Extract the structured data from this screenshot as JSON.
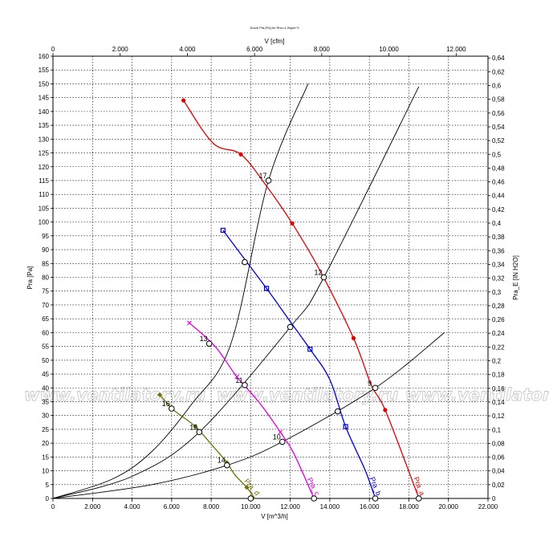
{
  "chart_data": {
    "type": "line",
    "title": "Druck Pra [Pa] for Rho=1.2kg/m^3",
    "xlabel": "V [m^3/h]",
    "x2label": "V [cfm]",
    "ylabel": "Pra [Pa]",
    "y2label": "Pra_E [IN H2O]",
    "xlim": [
      0,
      22000
    ],
    "ylim": [
      0,
      160
    ],
    "x2lim": [
      0,
      12948
    ],
    "y2lim": [
      0,
      0.6426
    ],
    "x_ticks": [
      "0",
      "2.000",
      "4.000",
      "6.000",
      "8.000",
      "10.000",
      "12.000",
      "14.000",
      "16.000",
      "18.000",
      "20.000",
      "22.000"
    ],
    "x2_ticks": [
      "0",
      "2.000",
      "4.000",
      "6.000",
      "8.000",
      "10.000",
      "12.000"
    ],
    "y_ticks": [
      "0",
      "5",
      "10",
      "15",
      "20",
      "25",
      "30",
      "35",
      "40",
      "45",
      "50",
      "55",
      "60",
      "65",
      "70",
      "75",
      "80",
      "85",
      "90",
      "95",
      "100",
      "105",
      "110",
      "115",
      "120",
      "125",
      "130",
      "135",
      "140",
      "145",
      "150",
      "155",
      "160"
    ],
    "y2_ticks": [
      "0",
      "0,02",
      "0,04",
      "0,06",
      "0,08",
      "0,1",
      "0,12",
      "0,14",
      "0,16",
      "0,18",
      "0,2",
      "0,22",
      "0,24",
      "0,26",
      "0,28",
      "0,3",
      "0,32",
      "0,34",
      "0,36",
      "0,38",
      "0,4",
      "0,42",
      "0,44",
      "0,46",
      "0,48",
      "0,5",
      "0,52",
      "0,54",
      "0,56",
      "0,58",
      "0,6",
      "0,62",
      "0,64"
    ],
    "grid": true,
    "watermark": "www.ventilatory.ru",
    "series": [
      {
        "name": "Pra_a",
        "color": "#e00000",
        "marker": "circle",
        "points": [
          [
            6600,
            144
          ],
          [
            8100,
            128.5
          ],
          [
            9500,
            124.5
          ],
          [
            10800,
            113
          ],
          [
            12100,
            99.5
          ],
          [
            13500,
            82.5
          ],
          [
            15200,
            58
          ],
          [
            16100,
            41
          ],
          [
            16800,
            32
          ],
          [
            18300,
            4
          ],
          [
            18500,
            0
          ]
        ]
      },
      {
        "name": "Pra_b",
        "color": "#0000dd",
        "marker": "square",
        "points": [
          [
            8600,
            97
          ],
          [
            9700,
            86.5
          ],
          [
            10800,
            76
          ],
          [
            11900,
            65
          ],
          [
            13000,
            54
          ],
          [
            14000,
            43
          ],
          [
            14800,
            26
          ],
          [
            15800,
            10
          ],
          [
            16300,
            0
          ]
        ]
      },
      {
        "name": "Pra_c",
        "color": "#e000e0",
        "marker": "cross",
        "points": [
          [
            6900,
            63.5
          ],
          [
            8200,
            55
          ],
          [
            9300,
            44
          ],
          [
            10400,
            35
          ],
          [
            11500,
            24
          ],
          [
            12200,
            16
          ],
          [
            13200,
            0
          ]
        ]
      },
      {
        "name": "Pra_d",
        "color": "#707000",
        "marker": "diamond",
        "points": [
          [
            5400,
            37.5
          ],
          [
            6100,
            32
          ],
          [
            7200,
            26
          ],
          [
            8200,
            18
          ],
          [
            8800,
            13
          ],
          [
            9200,
            8.5
          ],
          [
            9800,
            4
          ],
          [
            10200,
            0
          ]
        ]
      }
    ],
    "system_curves": [
      {
        "points": [
          [
            0,
            0
          ],
          [
            3000,
            7
          ],
          [
            5000,
            17
          ],
          [
            7000,
            34
          ],
          [
            9000,
            56
          ],
          [
            10900,
            115
          ],
          [
            12900,
            150
          ]
        ]
      },
      {
        "points": [
          [
            0,
            0
          ],
          [
            4000,
            8
          ],
          [
            7400,
            24
          ],
          [
            12000,
            62
          ],
          [
            13700,
            80
          ],
          [
            18500,
            149
          ]
        ]
      },
      {
        "points": [
          [
            0,
            0
          ],
          [
            5000,
            5
          ],
          [
            8800,
            12
          ],
          [
            11600,
            20.5
          ],
          [
            16300,
            40
          ],
          [
            19800,
            60
          ]
        ]
      }
    ],
    "operating_points": [
      {
        "label": "17",
        "x": 10900,
        "y": 115
      },
      {
        "label": "12",
        "x": 13700,
        "y": 80
      },
      {
        "label": "9",
        "x": 16300,
        "y": 40
      },
      {
        "label": "",
        "x": 9700,
        "y": 85.5
      },
      {
        "label": "",
        "x": 12000,
        "y": 62
      },
      {
        "label": "",
        "x": 14400,
        "y": 31.5
      },
      {
        "label": "13",
        "x": 7900,
        "y": 56
      },
      {
        "label": "11",
        "x": 9700,
        "y": 41
      },
      {
        "label": "10",
        "x": 11600,
        "y": 20.5
      },
      {
        "label": "16",
        "x": 6000,
        "y": 32.5
      },
      {
        "label": "15",
        "x": 7400,
        "y": 24
      },
      {
        "label": "14",
        "x": 8800,
        "y": 12
      },
      {
        "label": "",
        "x": 10000,
        "y": 0
      },
      {
        "label": "",
        "x": 13200,
        "y": 0
      },
      {
        "label": "",
        "x": 16300,
        "y": 0
      },
      {
        "label": "",
        "x": 18500,
        "y": 0
      }
    ]
  }
}
